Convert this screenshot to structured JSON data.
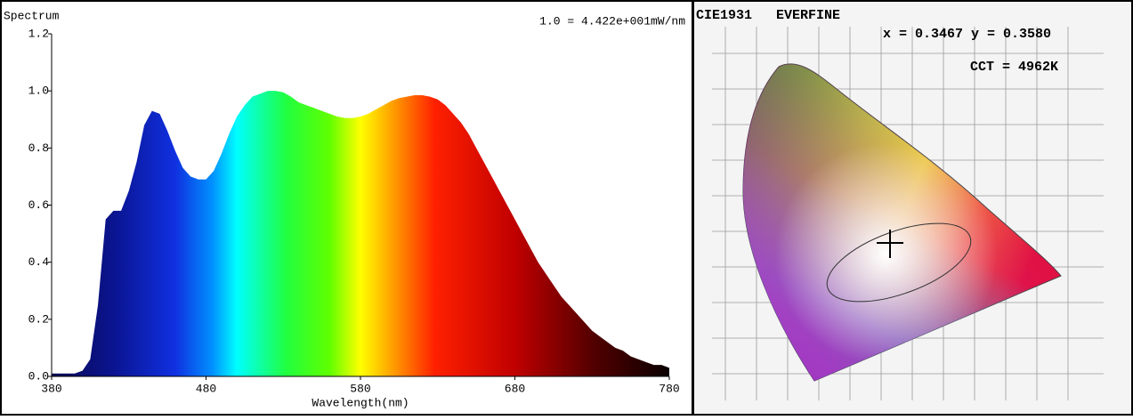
{
  "chart_data": {
    "type": "area",
    "title": "Spectrum",
    "annotation": "1.0 = 4.422e+001mW/nm",
    "xlabel": "Wavelength(nm)",
    "x": [
      380,
      385,
      390,
      395,
      400,
      405,
      410,
      415,
      420,
      425,
      430,
      435,
      440,
      445,
      450,
      455,
      460,
      465,
      470,
      475,
      480,
      485,
      490,
      495,
      500,
      505,
      510,
      515,
      520,
      525,
      530,
      535,
      540,
      545,
      550,
      555,
      560,
      565,
      570,
      575,
      580,
      585,
      590,
      595,
      600,
      605,
      610,
      615,
      620,
      625,
      630,
      635,
      640,
      645,
      650,
      655,
      660,
      665,
      670,
      675,
      680,
      685,
      690,
      695,
      700,
      705,
      710,
      715,
      720,
      725,
      730,
      735,
      740,
      745,
      750,
      755,
      760,
      765,
      770,
      775,
      780
    ],
    "values": [
      0.01,
      0.01,
      0.01,
      0.01,
      0.02,
      0.06,
      0.25,
      0.55,
      0.58,
      0.58,
      0.65,
      0.75,
      0.88,
      0.93,
      0.92,
      0.86,
      0.79,
      0.73,
      0.7,
      0.69,
      0.69,
      0.72,
      0.78,
      0.85,
      0.91,
      0.95,
      0.98,
      0.99,
      1.0,
      1.0,
      0.995,
      0.98,
      0.96,
      0.95,
      0.94,
      0.93,
      0.92,
      0.91,
      0.905,
      0.905,
      0.91,
      0.92,
      0.935,
      0.95,
      0.965,
      0.975,
      0.98,
      0.985,
      0.985,
      0.98,
      0.97,
      0.95,
      0.92,
      0.89,
      0.85,
      0.8,
      0.75,
      0.7,
      0.65,
      0.6,
      0.55,
      0.5,
      0.45,
      0.4,
      0.36,
      0.32,
      0.28,
      0.25,
      0.22,
      0.19,
      0.16,
      0.14,
      0.12,
      0.1,
      0.09,
      0.07,
      0.06,
      0.05,
      0.04,
      0.04,
      0.03
    ],
    "xlim": [
      380,
      780
    ],
    "xticks": [
      380,
      480,
      580,
      680,
      780
    ],
    "ylim": [
      0,
      1.2
    ],
    "yticks": [
      {
        "value": 0,
        "label": "0.0"
      },
      0.2,
      0.4,
      0.6,
      0.8,
      {
        "value": 1,
        "label": "1.0"
      },
      1.2
    ]
  },
  "cie_panel": {
    "title": "CIE1931   EVERFINE",
    "coordinates": "x = 0.3467 y = 0.3580",
    "cct": "CCT = 4962K"
  }
}
